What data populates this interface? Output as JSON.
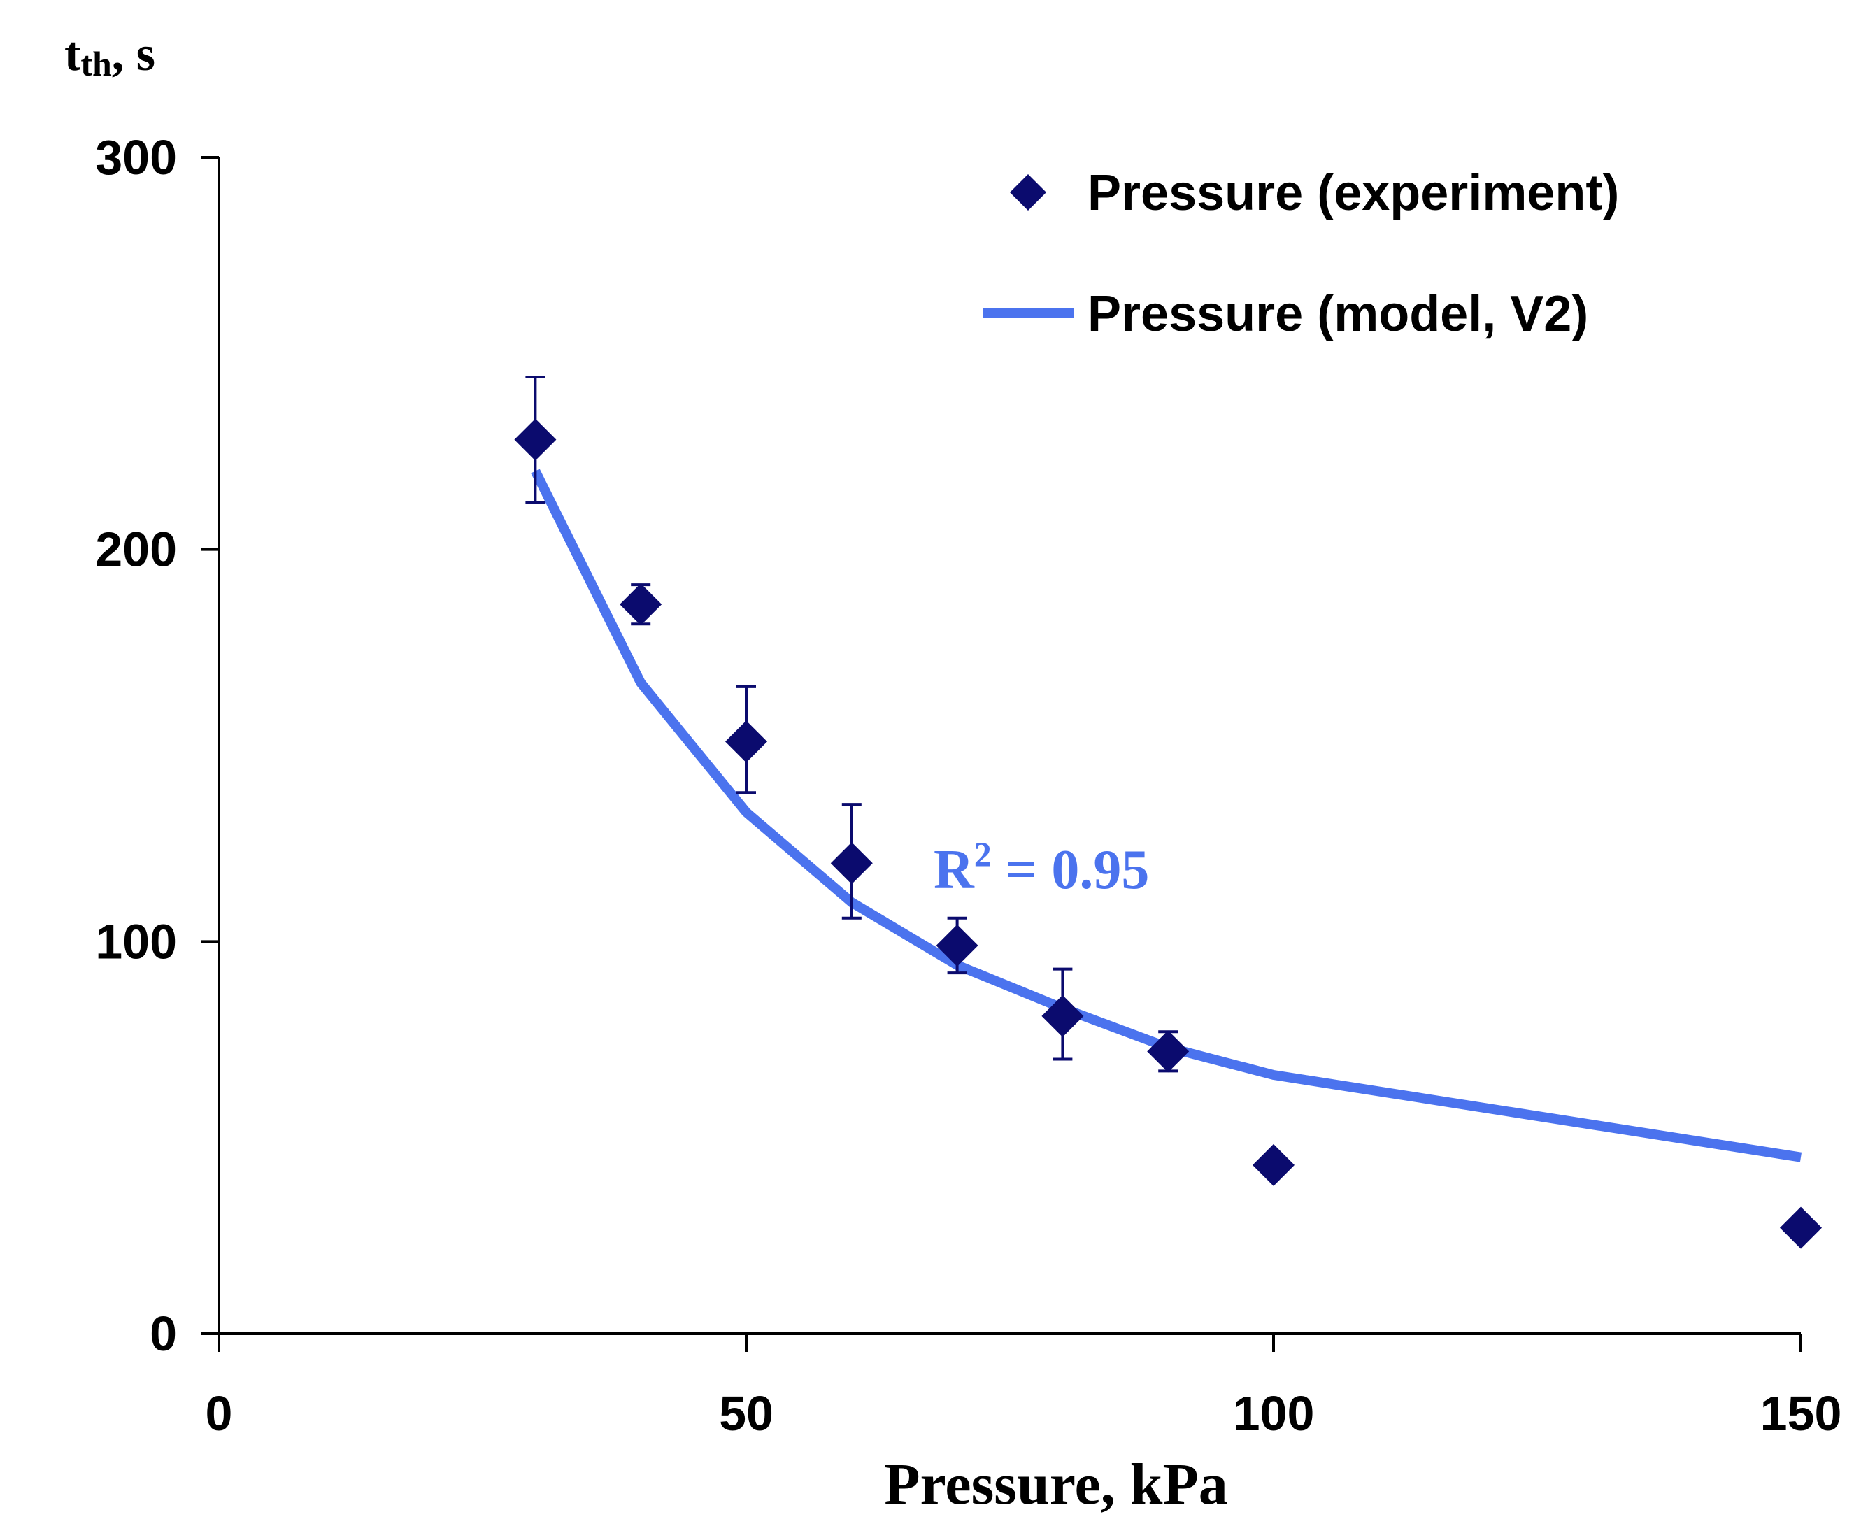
{
  "chart_data": {
    "type": "scatter",
    "title": "",
    "xlabel": "Pressure, kPa",
    "ylabel_main": "t",
    "ylabel_sub": "th",
    "ylabel_unit": ", s",
    "xlim": [
      0,
      150
    ],
    "ylim": [
      0,
      300
    ],
    "xticks": [
      0,
      50,
      100,
      150
    ],
    "yticks": [
      0,
      100,
      200,
      300
    ],
    "grid": false,
    "legend_position": "top-right",
    "series": [
      {
        "name": "Pressure (experiment)",
        "kind": "scatter",
        "marker": "diamond",
        "color": "#0b0b6e",
        "x": [
          30,
          40,
          50,
          60,
          70,
          80,
          90,
          100,
          150
        ],
        "y": [
          228,
          186,
          151,
          120,
          99,
          81,
          72,
          43,
          27
        ],
        "err_low": [
          212,
          181,
          138,
          106,
          92,
          70,
          67,
          42,
          27
        ],
        "err_high": [
          244,
          191,
          165,
          135,
          106,
          93,
          77,
          44,
          27
        ]
      },
      {
        "name": "Pressure (model, V2)",
        "kind": "line",
        "color": "#4b73ee",
        "x": [
          30,
          40,
          50,
          60,
          70,
          80,
          90,
          100,
          150
        ],
        "y": [
          220,
          166,
          133,
          110,
          94,
          83,
          73,
          66,
          45
        ]
      }
    ],
    "annotation": {
      "base": "R",
      "sup": "2",
      "rest": " = 0.95",
      "color": "#4b73ee"
    }
  }
}
